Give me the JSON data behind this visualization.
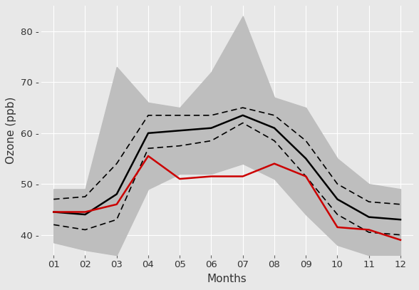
{
  "months": [
    1,
    2,
    3,
    4,
    5,
    6,
    7,
    8,
    9,
    10,
    11,
    12
  ],
  "month_labels": [
    "01",
    "02",
    "03",
    "04",
    "05",
    "06",
    "07",
    "08",
    "09",
    "10",
    "11",
    "12"
  ],
  "mean_1996_2019": [
    44.5,
    44.0,
    48.0,
    60.0,
    60.5,
    61.0,
    63.5,
    61.0,
    55.0,
    47.0,
    43.5,
    43.0
  ],
  "ci_upper": [
    47.0,
    47.5,
    54.0,
    63.5,
    63.5,
    63.5,
    65.0,
    63.5,
    58.5,
    50.0,
    46.5,
    46.0
  ],
  "ci_lower": [
    42.0,
    41.0,
    43.0,
    57.0,
    57.5,
    58.5,
    62.0,
    58.5,
    51.5,
    44.0,
    40.5,
    40.0
  ],
  "range_upper": [
    49.0,
    49.0,
    73.0,
    66.0,
    65.0,
    72.0,
    83.0,
    67.0,
    65.0,
    55.0,
    50.0,
    49.0
  ],
  "range_lower": [
    38.5,
    37.0,
    36.0,
    49.0,
    52.0,
    52.0,
    54.0,
    51.0,
    44.0,
    38.0,
    36.0,
    36.0
  ],
  "data_2020": [
    44.5,
    44.5,
    46.0,
    55.5,
    51.0,
    51.5,
    51.5,
    54.0,
    51.5,
    41.5,
    41.0,
    39.0
  ],
  "mean_color": "#000000",
  "range_color": "#bebebe",
  "data2020_color": "#cc0000",
  "panel_bg": "#e8e8e8",
  "outer_bg": "#e8e8e8",
  "grid_color": "#ffffff",
  "ylim": [
    36,
    85
  ],
  "yticks": [
    40,
    50,
    60,
    70,
    80
  ],
  "ylabel": "Ozone (ppb)",
  "xlabel": "Months",
  "tick_fontsize": 9.5,
  "label_fontsize": 11
}
